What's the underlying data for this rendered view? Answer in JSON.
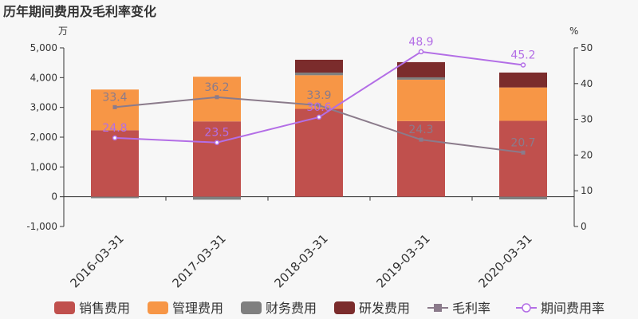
{
  "chart_data": {
    "type": "bar",
    "title": "历年期间费用及毛利率变化",
    "left_unit": "万",
    "right_unit": "%",
    "categories": [
      "2016-03-31",
      "2017-03-31",
      "2018-03-31",
      "2019-03-31",
      "2020-03-31"
    ],
    "ylim": [
      -1000,
      5000
    ],
    "y_ticks": [
      "-1,000",
      "0",
      "1,000",
      "2,000",
      "3,000",
      "4,000",
      "5,000"
    ],
    "y2lim": [
      0,
      50
    ],
    "y2_ticks": [
      "0",
      "10",
      "20",
      "30",
      "40",
      "50"
    ],
    "bar_series": [
      {
        "name": "销售费用",
        "color": "#c0504d",
        "values": [
          2230,
          2530,
          2950,
          2540,
          2550
        ]
      },
      {
        "name": "管理费用",
        "color": "#f79646",
        "values": [
          1370,
          1500,
          1130,
          1390,
          1120
        ]
      },
      {
        "name": "财务费用",
        "color": "#7f7f7f",
        "values": [
          -50,
          -100,
          90,
          80,
          -90
        ]
      },
      {
        "name": "研发费用",
        "color": "#7b2c2c",
        "values": [
          0,
          0,
          430,
          510,
          500
        ]
      }
    ],
    "line_series": [
      {
        "name": "毛利率",
        "color": "#8b7b8b",
        "marker": "square",
        "values": [
          33.4,
          36.2,
          33.9,
          24.3,
          20.7
        ],
        "labels": [
          "33.4",
          "36.2",
          "33.9",
          "24.3",
          "20.7"
        ]
      },
      {
        "name": "期间费用率",
        "color": "#b36ee6",
        "marker": "circle",
        "values": [
          24.8,
          23.5,
          30.6,
          48.9,
          45.2
        ],
        "labels": [
          "24.8",
          "23.5",
          "30.6",
          "48.9",
          "45.2"
        ]
      }
    ],
    "grid": false,
    "legend_position": "bottom"
  }
}
